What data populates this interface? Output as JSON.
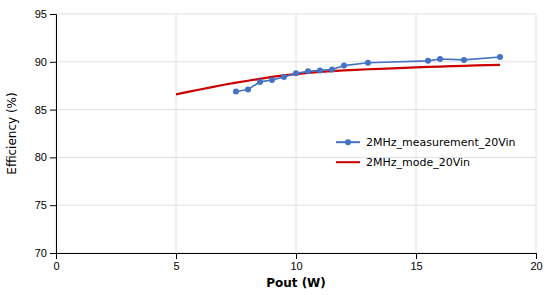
{
  "chart_data": {
    "type": "line",
    "x_label": "Pout (W)",
    "y_label": "Efficiency (%)",
    "series": [
      {
        "name": "2MHz_measurement_20Vin",
        "color": "#4472C4",
        "marker": "circle",
        "x": [
          7.5,
          8.0,
          8.5,
          9.0,
          9.5,
          10.0,
          10.5,
          11.0,
          11.5,
          12.0,
          13.0,
          15.5,
          16.0,
          17.0,
          18.5
        ],
        "values": [
          86.9,
          87.1,
          87.9,
          88.1,
          88.4,
          88.8,
          89.0,
          89.1,
          89.2,
          89.6,
          89.9,
          90.1,
          90.3,
          90.2,
          90.5
        ]
      },
      {
        "name": "2MHz_mode_20Vin",
        "color": "#CC0000",
        "x": [
          5.0,
          5.5,
          6.0,
          6.5,
          7.0,
          7.5,
          8.0,
          8.5,
          9.0,
          9.5,
          10.0,
          10.5,
          11.0,
          11.5,
          12.0,
          12.5,
          13.0,
          13.5,
          14.0,
          14.5,
          15.0,
          15.5,
          16.0,
          16.5,
          17.0,
          17.5,
          18.0,
          18.5
        ],
        "values": [
          86.6,
          86.85,
          87.1,
          87.35,
          87.6,
          87.82,
          88.02,
          88.22,
          88.42,
          88.58,
          88.72,
          88.84,
          88.94,
          89.02,
          89.1,
          89.16,
          89.22,
          89.27,
          89.32,
          89.37,
          89.42,
          89.46,
          89.5,
          89.54,
          89.58,
          89.62,
          89.65,
          89.68
        ]
      }
    ],
    "xlim": [
      0,
      20
    ],
    "ylim": [
      70,
      95
    ],
    "xticks": [
      0,
      5,
      10,
      15,
      20
    ],
    "yticks": [
      70,
      75,
      80,
      85,
      90,
      95
    ],
    "grid": true,
    "legend": "right"
  }
}
